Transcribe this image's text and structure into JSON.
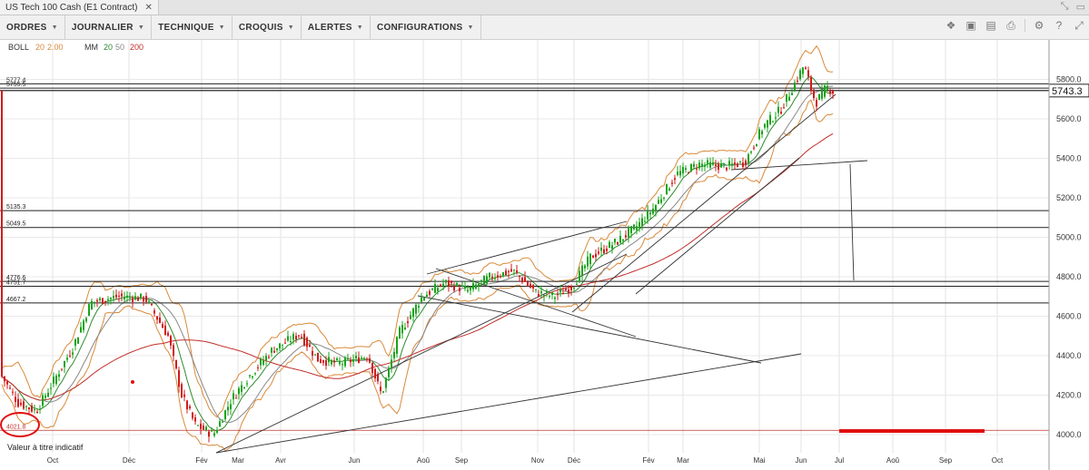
{
  "tab": {
    "title": "US Tech 100 Cash (E1 Contract)",
    "close": "✕"
  },
  "menus": [
    {
      "label": "ORDRES"
    },
    {
      "label": "JOURNALIER"
    },
    {
      "label": "TECHNIQUE"
    },
    {
      "label": "CROQUIS"
    },
    {
      "label": "ALERTES"
    },
    {
      "label": "CONFIGURATIONS"
    }
  ],
  "tool_icons": [
    "layers-icon",
    "image-icon",
    "image-alt-icon",
    "print-icon",
    "gear-icon",
    "help-icon",
    "expand-icon"
  ],
  "indicators": {
    "boll": {
      "name": "BOLL",
      "p1": "20",
      "p2": "2.00"
    },
    "mm": {
      "name": "MM",
      "p1": "20",
      "p2": "50",
      "p3": "200"
    }
  },
  "colors": {
    "up": "#1aa31a",
    "down": "#d11a1a",
    "boll": "#d98a3a",
    "ma20": "#2e8b2e",
    "ma50": "#888888",
    "ma200": "#c0302b",
    "annot": "#e01010"
  },
  "note": "Valeur à titre indicatif",
  "chart_data": {
    "type": "candlestick",
    "instrument": "US Tech 100 Cash (E1 Contract)",
    "y_ticks": [
      "4000.0",
      "4200.0",
      "4400.0",
      "4600.0",
      "4800.0",
      "5000.0",
      "5200.0",
      "5400.0",
      "5600.0",
      "5800.0"
    ],
    "x_ticks": [
      "Oct",
      "Déc",
      "Fév",
      "Mar",
      "Avr",
      "Jun",
      "Aoû",
      "Sep",
      "Nov",
      "Déc",
      "Fév",
      "Mar",
      "Mai",
      "Jun",
      "Jul",
      "Aoû",
      "Sep",
      "Oct"
    ],
    "current_price": "5743.3",
    "levels": [
      {
        "label": "5777.4",
        "value": 5777.4
      },
      {
        "label": "5755.5",
        "value": 5755.5
      },
      {
        "label": "5135.3",
        "value": 5135.3
      },
      {
        "label": "5049.5",
        "value": 5049.5
      },
      {
        "label": "4776.6",
        "value": 4776.6
      },
      {
        "label": "4751.7",
        "value": 4751.7
      },
      {
        "label": "4667.2",
        "value": 4667.2
      },
      {
        "label": "4021.8",
        "value": 4021.8
      }
    ]
  }
}
